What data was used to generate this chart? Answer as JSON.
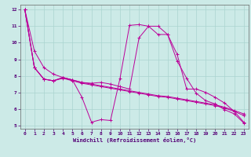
{
  "xlabel": "Windchill (Refroidissement éolien,°C)",
  "background_color": "#cceae7",
  "grid_color": "#aad4d0",
  "line_color": "#bb0099",
  "xlim_min": -0.5,
  "xlim_max": 23.5,
  "ylim_min": 4.8,
  "ylim_max": 12.3,
  "xticks": [
    0,
    1,
    2,
    3,
    4,
    5,
    6,
    7,
    8,
    9,
    10,
    11,
    12,
    13,
    14,
    15,
    16,
    17,
    18,
    19,
    20,
    21,
    22,
    23
  ],
  "yticks": [
    5,
    6,
    7,
    8,
    9,
    10,
    11,
    12
  ],
  "series": [
    [
      12.0,
      9.5,
      8.5,
      8.1,
      7.9,
      7.75,
      7.6,
      7.5,
      7.4,
      7.3,
      7.2,
      7.1,
      7.0,
      6.9,
      6.8,
      6.75,
      6.65,
      6.55,
      6.45,
      6.35,
      6.25,
      6.1,
      5.9,
      5.7
    ],
    [
      12.0,
      8.5,
      7.8,
      7.7,
      7.9,
      7.75,
      6.7,
      5.2,
      5.35,
      5.3,
      7.85,
      11.05,
      11.1,
      11.0,
      10.5,
      10.5,
      8.9,
      7.85,
      6.95,
      6.5,
      6.3,
      5.95,
      5.7,
      5.15
    ],
    [
      12.0,
      8.5,
      7.8,
      7.7,
      7.9,
      7.75,
      7.6,
      7.55,
      7.6,
      7.5,
      7.35,
      7.2,
      10.3,
      11.0,
      11.0,
      10.5,
      9.3,
      7.2,
      7.2,
      7.0,
      6.7,
      6.35,
      5.85,
      5.2
    ],
    [
      12.0,
      8.5,
      7.8,
      7.7,
      7.85,
      7.7,
      7.55,
      7.45,
      7.35,
      7.25,
      7.15,
      7.05,
      6.95,
      6.85,
      6.75,
      6.7,
      6.6,
      6.5,
      6.4,
      6.3,
      6.2,
      6.05,
      5.85,
      5.6
    ]
  ]
}
